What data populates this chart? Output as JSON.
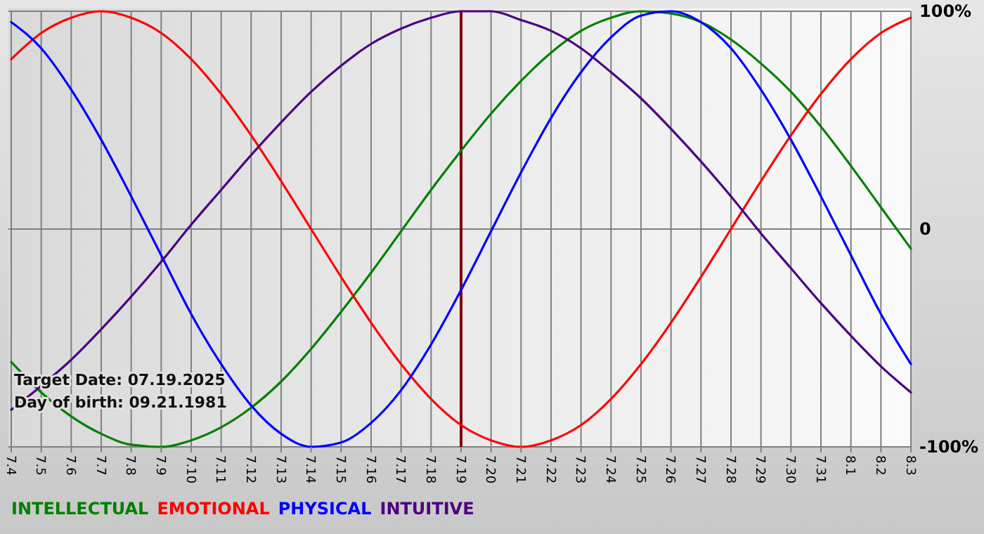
{
  "chart_data": {
    "type": "line",
    "categories": [
      "7.4",
      "7.5",
      "7.6",
      "7.7",
      "7.8",
      "7.9",
      "7.10",
      "7.11",
      "7.12",
      "7.13",
      "7.14",
      "7.15",
      "7.16",
      "7.17",
      "7.18",
      "7.19",
      "7.20",
      "7.21",
      "7.22",
      "7.23",
      "7.24",
      "7.25",
      "7.26",
      "7.27",
      "7.28",
      "7.29",
      "7.30",
      "7.31",
      "8.1",
      "8.2",
      "8.3"
    ],
    "series": [
      {
        "name": "INTELLECTUAL",
        "color": "#008000",
        "values": [
          -61,
          -75,
          -86,
          -94,
          -99,
          -100,
          -97,
          -91,
          -82,
          -70,
          -55,
          -38,
          -20,
          -1,
          18,
          36,
          53,
          68,
          81,
          91,
          97,
          100,
          99,
          95,
          87,
          76,
          63,
          47,
          29,
          10,
          -9
        ]
      },
      {
        "name": "EMOTIONAL",
        "color": "#ff0000",
        "values": [
          78,
          90,
          97,
          100,
          97,
          90,
          78,
          62,
          43,
          22,
          0,
          -22,
          -43,
          -62,
          -78,
          -90,
          -97,
          -100,
          -97,
          -90,
          -78,
          -62,
          -43,
          -22,
          0,
          22,
          43,
          62,
          78,
          90,
          97
        ]
      },
      {
        "name": "PHYSICAL",
        "color": "#0000ff",
        "values": [
          95,
          83,
          64,
          41,
          15,
          -12,
          -39,
          -62,
          -81,
          -94,
          -100,
          -98,
          -89,
          -74,
          -53,
          -28,
          -1,
          26,
          51,
          72,
          88,
          98,
          100,
          95,
          83,
          64,
          41,
          15,
          -12,
          -39,
          -62
        ]
      },
      {
        "name": "INTUITIVE",
        "color": "#4b0082",
        "values": [
          -83,
          -72,
          -60,
          -46,
          -31,
          -15,
          2,
          18,
          34,
          49,
          63,
          75,
          85,
          92,
          97,
          100,
          100,
          96,
          91,
          83,
          72,
          60,
          46,
          31,
          15,
          -2,
          -18,
          -34,
          -49,
          -63,
          -75
        ]
      }
    ],
    "ylim": [
      -100,
      100
    ],
    "yticks": [
      {
        "value": 100,
        "label": "100%"
      },
      0,
      {
        "value": -100,
        "label": "-100%"
      }
    ],
    "grid": true,
    "legend": "bottom",
    "ref_lines": [
      {
        "axis": "x",
        "value": "7.19",
        "color": "#800000"
      }
    ],
    "annotations": [
      "Target Date: 07.19.2025",
      "Day of birth: 09.21.1981"
    ]
  }
}
